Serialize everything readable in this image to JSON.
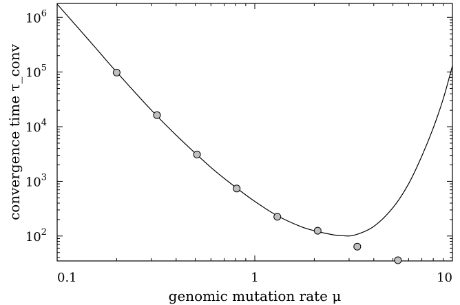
{
  "chart_data": {
    "type": "scatter",
    "xlabel": "genomic mutation rate μ",
    "ylabel": "convergence time τ_conv",
    "xscale": "log",
    "yscale": "log",
    "xlim": [
      0.1,
      10
    ],
    "ylim": [
      35,
      1800000
    ],
    "x_ticks": [
      {
        "value": 0.1,
        "label": "0.1"
      },
      {
        "value": 1,
        "label": "1"
      },
      {
        "value": 10,
        "label": "10"
      }
    ],
    "y_ticks": [
      {
        "value": 100,
        "base": "10",
        "exp": "2"
      },
      {
        "value": 1000,
        "base": "10",
        "exp": "3"
      },
      {
        "value": 10000,
        "base": "10",
        "exp": "4"
      },
      {
        "value": 100000,
        "base": "10",
        "exp": "5"
      },
      {
        "value": 1000000,
        "base": "10",
        "exp": "6"
      }
    ],
    "grid": false,
    "legend": "none",
    "series": [
      {
        "kind": "points",
        "marker_color": "#c0c0c0",
        "x": [
          0.2,
          0.32,
          0.51,
          0.81,
          1.3,
          2.08,
          3.3,
          5.3
        ],
        "y": [
          98000,
          16300,
          3100,
          740,
          225,
          125,
          64,
          36
        ]
      },
      {
        "kind": "line",
        "color": "#000000",
        "x": [
          0.1,
          0.15,
          0.2,
          0.3,
          0.4,
          0.6,
          0.8,
          1.0,
          1.3,
          1.7,
          2.0,
          2.5,
          2.8,
          3.2,
          4.0,
          5.0,
          6.0,
          7.0,
          8.0,
          9.0,
          10.0
        ],
        "y": [
          1750000,
          330000,
          100000,
          20000,
          7000,
          1800,
          780,
          430,
          235,
          150,
          125,
          105,
          101,
          104,
          150,
          330,
          900,
          2900,
          9500,
          33000,
          130000
        ]
      }
    ]
  }
}
